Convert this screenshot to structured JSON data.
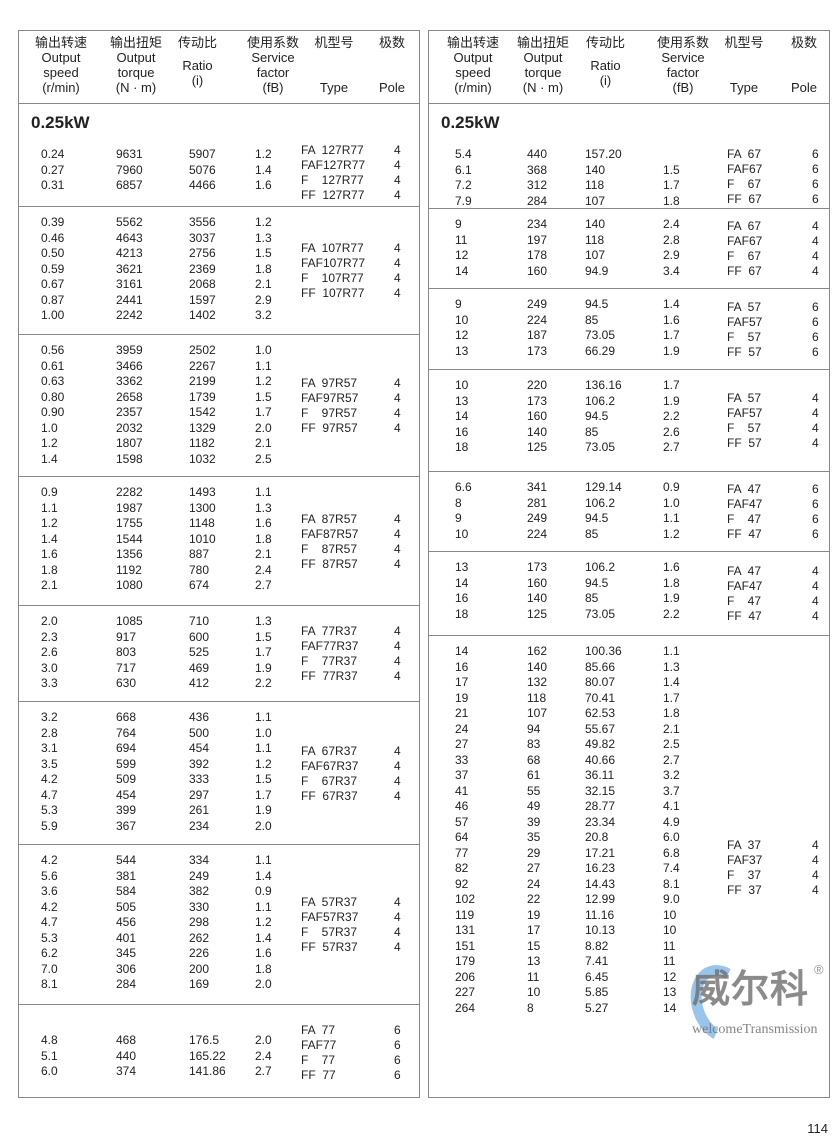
{
  "headers": [
    {
      "cn": "输出转速",
      "en": "Output speed (r/min)"
    },
    {
      "cn": "输出扭矩",
      "en": "Output torque (N · m)"
    },
    {
      "cn": "传动比",
      "en": "Ratio (i)"
    },
    {
      "cn": "使用系数",
      "en": "Service factor (fB)"
    },
    {
      "cn": "机型号",
      "en": "Type"
    },
    {
      "cn": "极数",
      "en": "Pole"
    }
  ],
  "header_lines": {
    "speed": [
      "Output",
      "speed",
      "(r/min)"
    ],
    "torque": [
      "Output",
      "torque",
      "(N · m)"
    ],
    "ratio": [
      "Ratio",
      "(i)"
    ],
    "sf": [
      "Service",
      "factor",
      "(fB)"
    ],
    "type": [
      "Type"
    ],
    "pole": [
      "Pole"
    ]
  },
  "power_left": "0.25kW",
  "power_right": "0.25kW",
  "left_groups": [
    {
      "rows": [
        [
          "0.24",
          "9631",
          "5907",
          "1.2"
        ],
        [
          "0.27",
          "7960",
          "5076",
          "1.4"
        ],
        [
          "0.31",
          "6857",
          "4466",
          "1.6"
        ]
      ],
      "types": [
        [
          "FA  127R77",
          "4"
        ],
        [
          "FAF127R77",
          "4"
        ],
        [
          "F    127R77",
          "4"
        ],
        [
          "FF  127R77",
          "4"
        ]
      ]
    },
    {
      "rows": [
        [
          "0.39",
          "5562",
          "3556",
          "1.2"
        ],
        [
          "0.46",
          "4643",
          "3037",
          "1.3"
        ],
        [
          "0.50",
          "4213",
          "2756",
          "1.5"
        ],
        [
          "0.59",
          "3621",
          "2369",
          "1.8"
        ],
        [
          "0.67",
          "3161",
          "2068",
          "2.1"
        ],
        [
          "0.87",
          "2441",
          "1597",
          "2.9"
        ],
        [
          "1.00",
          "2242",
          "1402",
          "3.2"
        ]
      ],
      "types": [
        [
          "FA  107R77",
          "4"
        ],
        [
          "FAF107R77",
          "4"
        ],
        [
          "F    107R77",
          "4"
        ],
        [
          "FF  107R77",
          "4"
        ]
      ]
    },
    {
      "rows": [
        [
          "0.56",
          "3959",
          "2502",
          "1.0"
        ],
        [
          "0.61",
          "3466",
          "2267",
          "1.1"
        ],
        [
          "0.63",
          "3362",
          "2199",
          "1.2"
        ],
        [
          "0.80",
          "2658",
          "1739",
          "1.5"
        ],
        [
          "0.90",
          "2357",
          "1542",
          "1.7"
        ],
        [
          "1.0",
          "2032",
          "1329",
          "2.0"
        ],
        [
          "1.2",
          "1807",
          "1182",
          "2.1"
        ],
        [
          "1.4",
          "1598",
          "1032",
          "2.5"
        ]
      ],
      "types": [
        [
          "FA  97R57",
          "4"
        ],
        [
          "FAF97R57",
          "4"
        ],
        [
          "F    97R57",
          "4"
        ],
        [
          "FF  97R57",
          "4"
        ]
      ]
    },
    {
      "rows": [
        [
          "0.9",
          "2282",
          "1493",
          "1.1"
        ],
        [
          "1.1",
          "1987",
          "1300",
          "1.3"
        ],
        [
          "1.2",
          "1755",
          "1148",
          "1.6"
        ],
        [
          "1.4",
          "1544",
          "1010",
          "1.8"
        ],
        [
          "1.6",
          "1356",
          "887",
          "2.1"
        ],
        [
          "1.8",
          "1192",
          "780",
          "2.4"
        ],
        [
          "2.1",
          "1080",
          "674",
          "2.7"
        ]
      ],
      "types": [
        [
          "FA  87R57",
          "4"
        ],
        [
          "FAF87R57",
          "4"
        ],
        [
          "F    87R57",
          "4"
        ],
        [
          "FF  87R57",
          "4"
        ]
      ]
    },
    {
      "rows": [
        [
          "2.0",
          "1085",
          "710",
          "1.3"
        ],
        [
          "2.3",
          "917",
          "600",
          "1.5"
        ],
        [
          "2.6",
          "803",
          "525",
          "1.7"
        ],
        [
          "3.0",
          "717",
          "469",
          "1.9"
        ],
        [
          "3.3",
          "630",
          "412",
          "2.2"
        ]
      ],
      "types": [
        [
          "FA  77R37",
          "4"
        ],
        [
          "FAF77R37",
          "4"
        ],
        [
          "F    77R37",
          "4"
        ],
        [
          "FF  77R37",
          "4"
        ]
      ]
    },
    {
      "rows": [
        [
          "3.2",
          "668",
          "436",
          "1.1"
        ],
        [
          "2.8",
          "764",
          "500",
          "1.0"
        ],
        [
          "3.1",
          "694",
          "454",
          "1.1"
        ],
        [
          "3.5",
          "599",
          "392",
          "1.2"
        ],
        [
          "4.2",
          "509",
          "333",
          "1.5"
        ],
        [
          "4.7",
          "454",
          "297",
          "1.7"
        ],
        [
          "5.3",
          "399",
          "261",
          "1.9"
        ],
        [
          "5.9",
          "367",
          "234",
          "2.0"
        ]
      ],
      "types": [
        [
          "FA  67R37",
          "4"
        ],
        [
          "FAF67R37",
          "4"
        ],
        [
          "F    67R37",
          "4"
        ],
        [
          "FF  67R37",
          "4"
        ]
      ]
    },
    {
      "rows": [
        [
          "4.2",
          "544",
          "334",
          "1.1"
        ],
        [
          "5.6",
          "381",
          "249",
          "1.4"
        ],
        [
          "3.6",
          "584",
          "382",
          "0.9"
        ],
        [
          "4.2",
          "505",
          "330",
          "1.1"
        ],
        [
          "4.7",
          "456",
          "298",
          "1.2"
        ],
        [
          "5.3",
          "401",
          "262",
          "1.4"
        ],
        [
          "6.2",
          "345",
          "226",
          "1.6"
        ],
        [
          "7.0",
          "306",
          "200",
          "1.8"
        ],
        [
          "8.1",
          "284",
          "169",
          "2.0"
        ]
      ],
      "types": [
        [
          "FA  57R37",
          "4"
        ],
        [
          "FAF57R37",
          "4"
        ],
        [
          "F    57R37",
          "4"
        ],
        [
          "FF  57R37",
          "4"
        ]
      ]
    },
    {
      "rows": [
        [
          "4.8",
          "468",
          "176.5",
          "2.0"
        ],
        [
          "5.1",
          "440",
          "165.22",
          "2.4"
        ],
        [
          "6.0",
          "374",
          "141.86",
          "2.7"
        ]
      ],
      "types": [
        [
          "FA  77",
          "6"
        ],
        [
          "FAF77",
          "6"
        ],
        [
          "F    77",
          "6"
        ],
        [
          "FF  77",
          "6"
        ]
      ]
    }
  ],
  "right_groups": [
    {
      "rows": [
        [
          "5.4",
          "440",
          "157.20",
          ""
        ],
        [
          "6.1",
          "368",
          "140",
          "1.5"
        ],
        [
          "7.2",
          "312",
          "118",
          "1.7"
        ],
        [
          "7.9",
          "284",
          "107",
          "1.8"
        ]
      ],
      "types": [
        [
          "FA  67",
          "6"
        ],
        [
          "FAF67",
          "6"
        ],
        [
          "F    67",
          "6"
        ],
        [
          "FF  67",
          "6"
        ]
      ]
    },
    {
      "rows": [
        [
          "9",
          "234",
          "140",
          "2.4"
        ],
        [
          "11",
          "197",
          "118",
          "2.8"
        ],
        [
          "12",
          "178",
          "107",
          "2.9"
        ],
        [
          "14",
          "160",
          "94.9",
          "3.4"
        ]
      ],
      "types": [
        [
          "FA  67",
          "4"
        ],
        [
          "FAF67",
          "4"
        ],
        [
          "F    67",
          "4"
        ],
        [
          "FF  67",
          "4"
        ]
      ]
    },
    {
      "rows": [
        [
          "9",
          "249",
          "94.5",
          "1.4"
        ],
        [
          "10",
          "224",
          "85",
          "1.6"
        ],
        [
          "12",
          "187",
          "73.05",
          "1.7"
        ],
        [
          "13",
          "173",
          "66.29",
          "1.9"
        ]
      ],
      "types": [
        [
          "FA  57",
          "6"
        ],
        [
          "FAF57",
          "6"
        ],
        [
          "F    57",
          "6"
        ],
        [
          "FF  57",
          "6"
        ]
      ]
    },
    {
      "rows": [
        [
          "10",
          "220",
          "136.16",
          "1.7"
        ],
        [
          "13",
          "173",
          "106.2",
          "1.9"
        ],
        [
          "14",
          "160",
          "94.5",
          "2.2"
        ],
        [
          "16",
          "140",
          "85",
          "2.6"
        ],
        [
          "18",
          "125",
          "73.05",
          "2.7"
        ]
      ],
      "types": [
        [
          "FA  57",
          "4"
        ],
        [
          "FAF57",
          "4"
        ],
        [
          "F    57",
          "4"
        ],
        [
          "FF  57",
          "4"
        ]
      ]
    },
    {
      "rows": [
        [
          "6.6",
          "341",
          "129.14",
          "0.9"
        ],
        [
          "8",
          "281",
          "106.2",
          "1.0"
        ],
        [
          "9",
          "249",
          "94.5",
          "1.1"
        ],
        [
          "10",
          "224",
          "85",
          "1.2"
        ]
      ],
      "types": [
        [
          "FA  47",
          "6"
        ],
        [
          "FAF47",
          "6"
        ],
        [
          "F    47",
          "6"
        ],
        [
          "FF  47",
          "6"
        ]
      ]
    },
    {
      "rows": [
        [
          "13",
          "173",
          "106.2",
          "1.6"
        ],
        [
          "14",
          "160",
          "94.5",
          "1.8"
        ],
        [
          "16",
          "140",
          "85",
          "1.9"
        ],
        [
          "18",
          "125",
          "73.05",
          "2.2"
        ]
      ],
      "types": [
        [
          "FA  47",
          "4"
        ],
        [
          "FAF47",
          "4"
        ],
        [
          "F    47",
          "4"
        ],
        [
          "FF  47",
          "4"
        ]
      ]
    },
    {
      "rows": [
        [
          "14",
          "162",
          "100.36",
          "1.1"
        ],
        [
          "16",
          "140",
          "85.66",
          "1.3"
        ],
        [
          "17",
          "132",
          "80.07",
          "1.4"
        ],
        [
          "19",
          "118",
          "70.41",
          "1.7"
        ],
        [
          "21",
          "107",
          "62.53",
          "1.8"
        ],
        [
          "24",
          "94",
          "55.67",
          "2.1"
        ],
        [
          "27",
          "83",
          "49.82",
          "2.5"
        ],
        [
          "33",
          "68",
          "40.66",
          "2.7"
        ],
        [
          "37",
          "61",
          "36.11",
          "3.2"
        ],
        [
          "41",
          "55",
          "32.15",
          "3.7"
        ],
        [
          "46",
          "49",
          "28.77",
          "4.1"
        ],
        [
          "57",
          "39",
          "23.34",
          "4.9"
        ],
        [
          "64",
          "35",
          "20.8",
          "6.0"
        ],
        [
          "77",
          "29",
          "17.21",
          "6.8"
        ],
        [
          "82",
          "27",
          "16.23",
          "7.4"
        ],
        [
          "92",
          "24",
          "14.43",
          "8.1"
        ],
        [
          "102",
          "22",
          "12.99",
          "9.0"
        ],
        [
          "119",
          "19",
          "11.16",
          "10"
        ],
        [
          "131",
          "17",
          "10.13",
          "10"
        ],
        [
          "151",
          "15",
          "8.82",
          "11"
        ],
        [
          "179",
          "13",
          "7.41",
          "11"
        ],
        [
          "206",
          "11",
          "6.45",
          "12"
        ],
        [
          "227",
          "10",
          "5.85",
          "13"
        ],
        [
          "264",
          "8",
          "5.27",
          "14"
        ]
      ],
      "types": [
        [
          "FA  37",
          "4"
        ],
        [
          "FAF37",
          "4"
        ],
        [
          "F    37",
          "4"
        ],
        [
          "FF  37",
          "4"
        ]
      ]
    }
  ],
  "watermark": {
    "cn": "威尔科",
    "reg": "®",
    "en": "welcomeTransmission"
  },
  "page_number": "114"
}
